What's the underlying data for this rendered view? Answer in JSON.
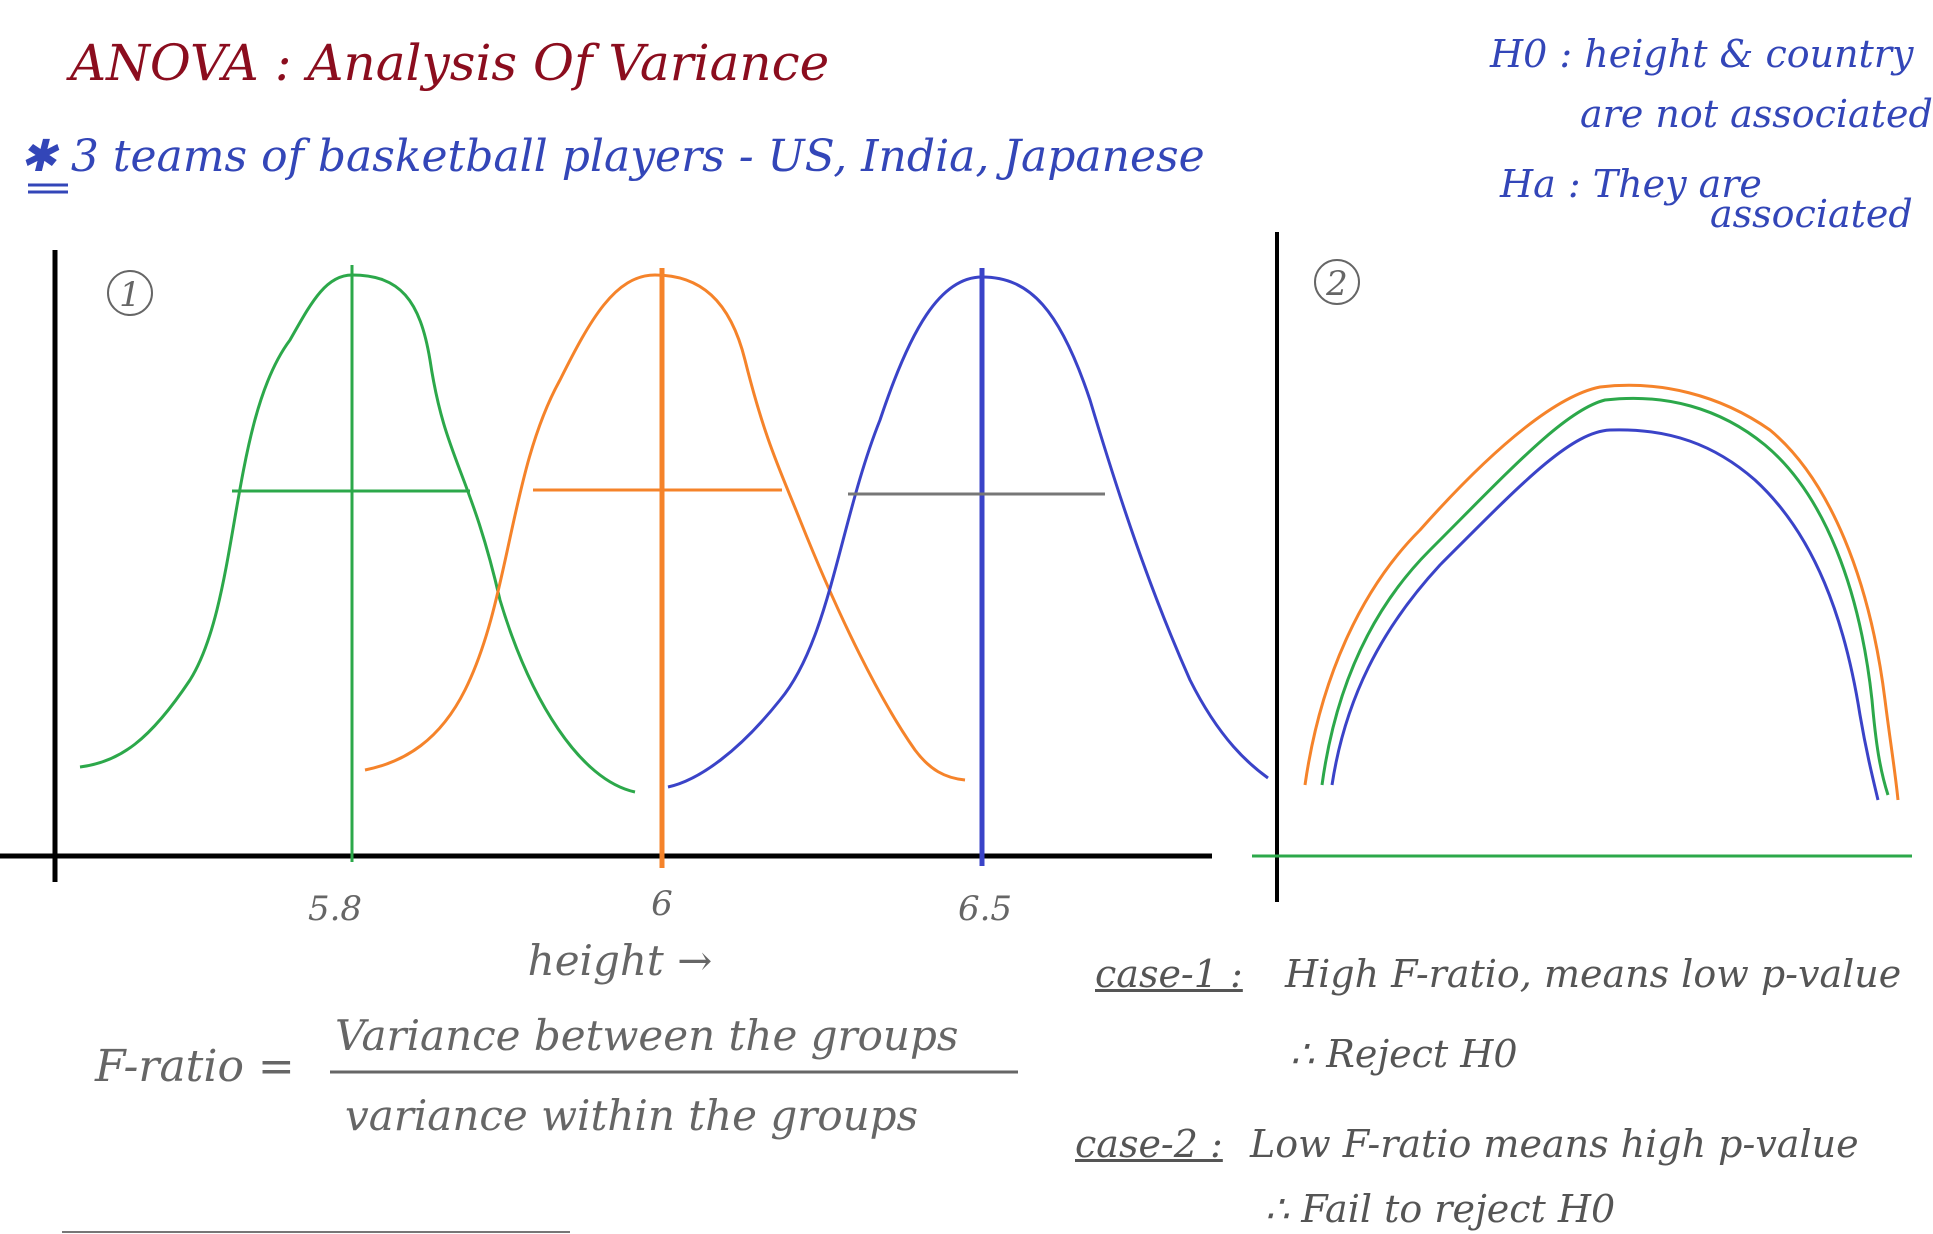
{
  "title": "ANOVA : Analysis Of Variance",
  "subtitle": "✱ 3 teams of basketball players - US, India, Japanese",
  "hypotheses": {
    "h0_line1": "H0 : height & country",
    "h0_line2": "are not associated",
    "ha_line1": "Ha : They are",
    "ha_line2": "associated"
  },
  "plot1": {
    "marker": "1",
    "xlabel": "height →",
    "ticks": [
      "5.8",
      "6",
      "6.5"
    ]
  },
  "plot2": {
    "marker": "2"
  },
  "colors": {
    "green": "#2ca84a",
    "orange": "#f5832a",
    "blue": "#3a43c8",
    "title": "#8b0d1e",
    "ink_blue": "#3346b8",
    "gray": "#666666"
  },
  "formula": {
    "label": "F-ratio =",
    "numerator": "Variance between the groups",
    "denominator": "variance within the groups"
  },
  "cases": {
    "case1_label": "case-1 :",
    "case1_text": "High F-ratio, means low p-value",
    "case1_result": "∴ Reject H0",
    "case2_label": "case-2 :",
    "case2_text": "Low F-ratio means high p-value",
    "case2_result": "∴ Fail to reject H0"
  }
}
